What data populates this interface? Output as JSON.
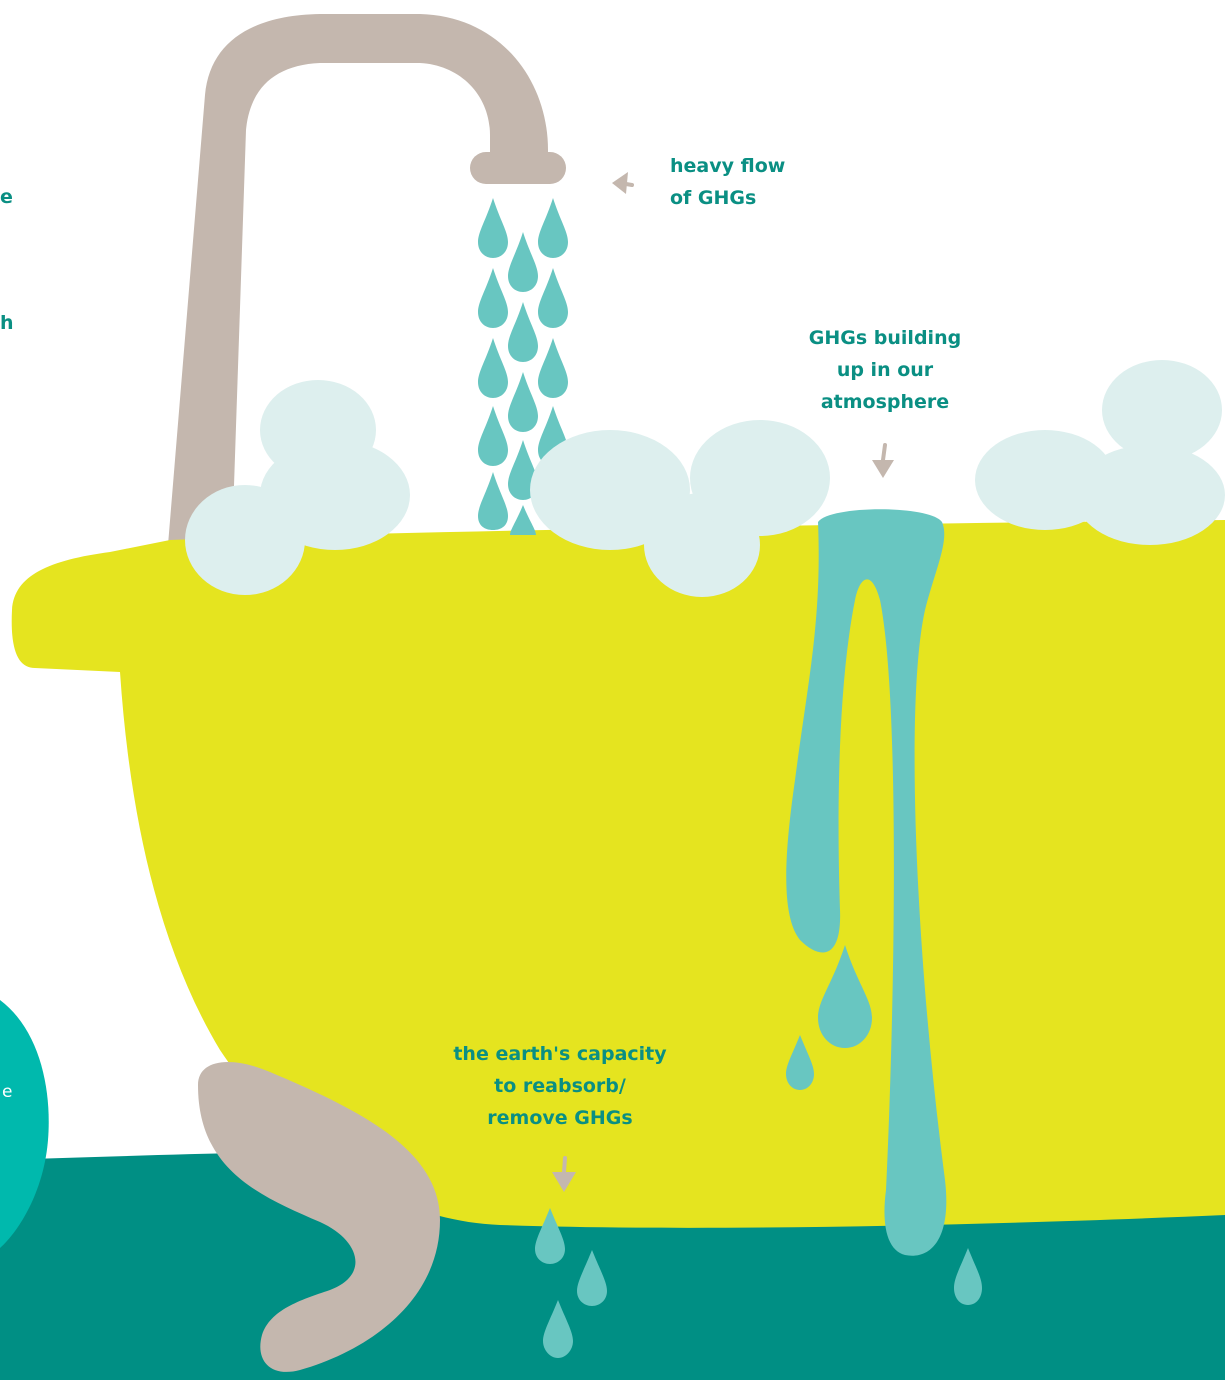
{
  "labels": {
    "heavy_flow": "heavy flow\nof GHGs",
    "building_up": "GHGs building\nup in our\natmosphere",
    "earth_capacity": "the earth's capacity\nto reabsorb/\nremove GHGs"
  },
  "left_cropped_text": [
    "e",
    "h"
  ],
  "side_panel_cropped_text": "e",
  "colors": {
    "tub": "#e5e41f",
    "ghg_liquid": "#68c6c1",
    "faucet_and_feet": "#c4b7ae",
    "bubbles": "#ddefee",
    "floor": "#008f84",
    "side_panel": "#00b9ad",
    "label_text": "#0a8f83",
    "arrows": "#c4b7ae"
  },
  "icons": [
    "faucet",
    "water-drop",
    "bubble",
    "arrow"
  ]
}
